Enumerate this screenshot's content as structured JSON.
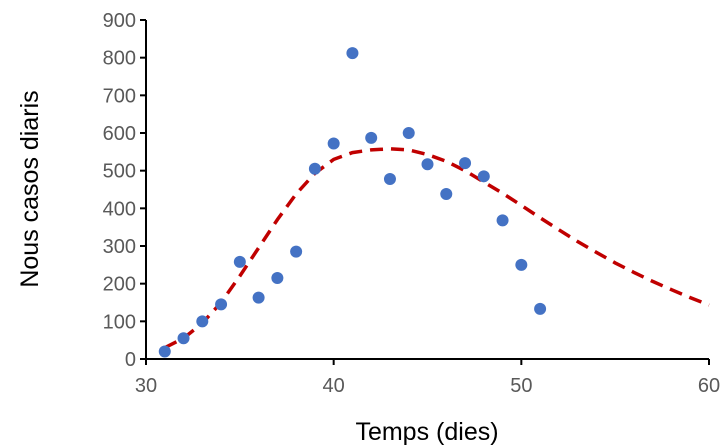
{
  "chart_data": {
    "type": "scatter",
    "title": "",
    "xlabel": "Temps (dies)",
    "ylabel": "Nous casos diaris",
    "xlim": [
      30,
      60
    ],
    "ylim": [
      0,
      900
    ],
    "x_ticks": [
      30,
      40,
      50,
      60
    ],
    "y_ticks": [
      0,
      100,
      200,
      300,
      400,
      500,
      600,
      700,
      800,
      900
    ],
    "grid": false,
    "legend": "none",
    "series": [
      {
        "type": "scatter",
        "color": "#4472C4",
        "points": [
          [
            31,
            20
          ],
          [
            32,
            55
          ],
          [
            33,
            100
          ],
          [
            34,
            145
          ],
          [
            35,
            258
          ],
          [
            36,
            163
          ],
          [
            37,
            215
          ],
          [
            38,
            285
          ],
          [
            39,
            505
          ],
          [
            40,
            572
          ],
          [
            41,
            812
          ],
          [
            42,
            587
          ],
          [
            43,
            478
          ],
          [
            44,
            600
          ],
          [
            45,
            517
          ],
          [
            46,
            438
          ],
          [
            47,
            520
          ],
          [
            48,
            485
          ],
          [
            49,
            368
          ],
          [
            50,
            250
          ],
          [
            51,
            133
          ]
        ]
      },
      {
        "type": "line",
        "style": "dashed",
        "color": "#C00000",
        "points": [
          [
            31,
            30
          ],
          [
            32,
            55
          ],
          [
            33,
            95
          ],
          [
            34,
            150
          ],
          [
            35,
            220
          ],
          [
            36,
            295
          ],
          [
            37,
            370
          ],
          [
            38,
            438
          ],
          [
            39,
            493
          ],
          [
            40,
            530
          ],
          [
            41,
            548
          ],
          [
            42,
            555
          ],
          [
            43,
            558
          ],
          [
            44,
            555
          ],
          [
            45,
            543
          ],
          [
            46,
            525
          ],
          [
            47,
            500
          ],
          [
            48,
            470
          ],
          [
            49,
            440
          ],
          [
            50,
            408
          ],
          [
            51,
            375
          ],
          [
            52,
            343
          ],
          [
            53,
            312
          ],
          [
            54,
            283
          ],
          [
            55,
            255
          ],
          [
            56,
            230
          ],
          [
            57,
            206
          ],
          [
            58,
            184
          ],
          [
            59,
            163
          ],
          [
            60,
            143
          ]
        ]
      }
    ]
  }
}
